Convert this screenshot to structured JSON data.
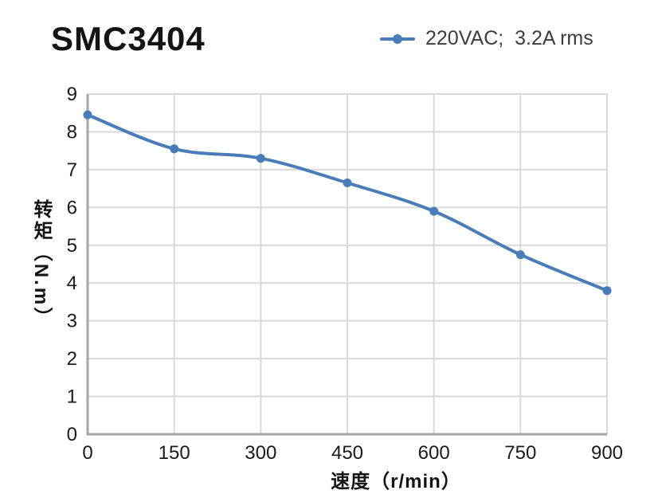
{
  "title": "SMC3404",
  "legend": {
    "label": "220VAC;  3.2A rms",
    "marker": "line-with-circle"
  },
  "colors": {
    "series": "#4A7CBA",
    "gridline": "#D9D9D9",
    "axis_line": "#A6A6A6",
    "title_text": "#141414",
    "tick_text": "#1A1A1A",
    "legend_text": "#3D3D3D",
    "background": "#FFFFFF"
  },
  "chart_data": {
    "type": "line",
    "title": "SMC3404",
    "xlabel": "速度（r/min）",
    "ylabel": "转矩（N.m）",
    "x": [
      0,
      150,
      300,
      450,
      600,
      750,
      900
    ],
    "series": [
      {
        "name": "220VAC;  3.2A rms",
        "values": [
          8.45,
          7.55,
          7.3,
          6.65,
          5.9,
          4.75,
          3.8
        ]
      }
    ],
    "xlim": [
      0,
      900
    ],
    "ylim": [
      0,
      9
    ],
    "xticks": [
      0,
      150,
      300,
      450,
      600,
      750,
      900
    ],
    "yticks": [
      0,
      1,
      2,
      3,
      4,
      5,
      6,
      7,
      8,
      9
    ],
    "grid": true,
    "smooth": true,
    "marker": "circle",
    "legend_position": "top-right"
  }
}
